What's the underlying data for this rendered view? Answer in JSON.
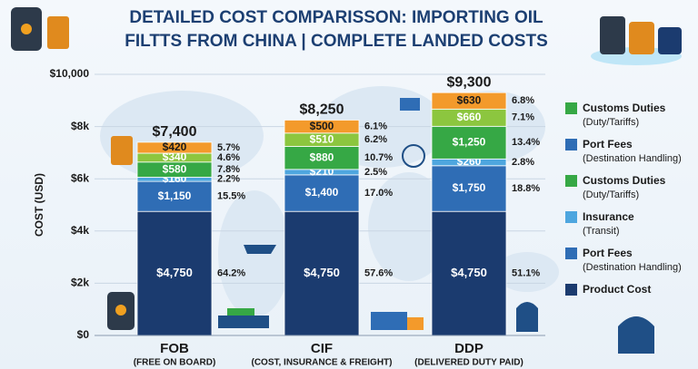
{
  "chart_data": {
    "type": "stacked-bar",
    "title_lines": [
      "DETAILED COST COMPARISSON: IMPORTING OIL",
      "FILTTS FROM CHINA | COMPLETE LANDED COSTS"
    ],
    "y_label": "COST (USD)",
    "categories": [
      "FOB",
      "CIF",
      "DDP"
    ],
    "category_notes": [
      "(FREE ON BOARD)",
      "(COST, INSURANCE & FREIGHT)",
      "(DELIVERED DUTY PAID)"
    ],
    "ylim": [
      0,
      10000
    ],
    "yticks": [
      {
        "value": 0,
        "label": "$0"
      },
      {
        "value": 2000,
        "label": "$2k"
      },
      {
        "value": 4000,
        "label": "$4k"
      },
      {
        "value": 6000,
        "label": "$6k"
      },
      {
        "value": 8000,
        "label": "$8k"
      },
      {
        "value": 10000,
        "label": "$10,000"
      }
    ],
    "series": [
      {
        "name": "Product Cost",
        "color": "#1b3b6f",
        "legend_color": "#1b3b6f",
        "values": [
          4750,
          4750,
          4750
        ],
        "value_labels": [
          "$4,750",
          "$4,750",
          "$4,750"
        ],
        "percents": [
          64.2,
          57.6,
          51.1
        ],
        "percent_labels": [
          "64.2%",
          "57.6%",
          "51.1%"
        ]
      },
      {
        "name": "Port Fees",
        "note": "(Destination Handling)",
        "color": "#2f6db5",
        "legend_color": "#2f6db5",
        "values": [
          1150,
          1400,
          1750
        ],
        "value_labels": [
          "$1,150",
          "$1,400",
          "$1,750"
        ],
        "percents": [
          15.5,
          17.0,
          18.8
        ],
        "percent_labels": [
          "15.5%",
          "17.0%",
          "18.8%"
        ]
      },
      {
        "name": "Insurance",
        "note": "(Transit)",
        "color": "#4ea6df",
        "legend_color": "#4ea6df",
        "values": [
          160,
          210,
          260
        ],
        "value_labels": [
          "$160",
          "$210",
          "$260"
        ],
        "percents": [
          2.2,
          2.5,
          2.8
        ],
        "percent_labels": [
          "2.2%",
          "2.5%",
          "2.8%"
        ]
      },
      {
        "name": "Customs Duties",
        "note": "(Duty/Tariffs)",
        "color": "#36a845",
        "legend_color": "#36a845",
        "values": [
          580,
          880,
          1250
        ],
        "value_labels": [
          "$580",
          "$880",
          "$1,250"
        ],
        "percents": [
          7.8,
          10.7,
          13.4
        ],
        "percent_labels": [
          "7.8%",
          "10.7%",
          "13.4%"
        ]
      },
      {
        "name": "Port Fees",
        "note": "(Destination Handling)",
        "color": "#8cc63f",
        "legend_color": "#2f6db5",
        "values": [
          340,
          510,
          660
        ],
        "value_labels": [
          "$340",
          "$510",
          "$660"
        ],
        "percents": [
          4.6,
          6.2,
          7.1
        ],
        "percent_labels": [
          "4.6%",
          "6.2%",
          "7.1%"
        ]
      },
      {
        "name": "Customs Duties",
        "note": "(Duty/Tariffs)",
        "color": "#f39a2b",
        "legend_color": "#36a845",
        "values": [
          420,
          500,
          630
        ],
        "value_labels": [
          "$420",
          "$500",
          "$630"
        ],
        "percents": [
          5.7,
          6.1,
          6.8
        ],
        "percent_labels": [
          "5.7%",
          "6.1%",
          "6.8%"
        ]
      }
    ],
    "totals": [
      7400,
      8250,
      9300
    ],
    "total_labels": [
      "$7,400",
      "$8,250",
      "$9,300"
    ]
  }
}
